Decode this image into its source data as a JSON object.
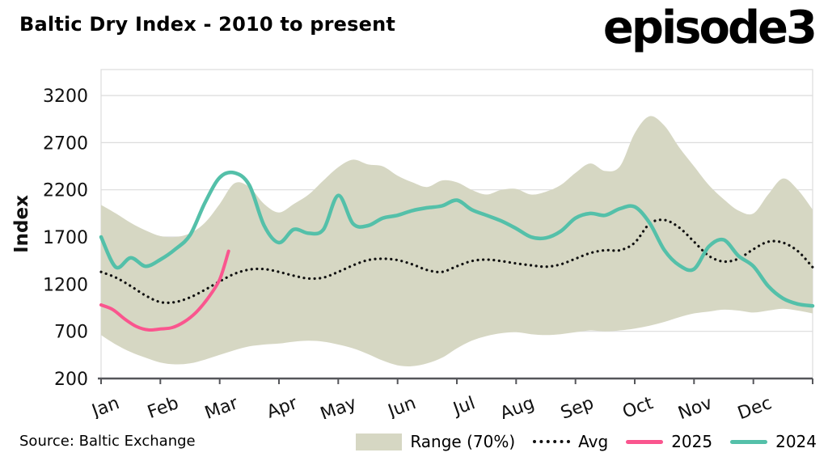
{
  "header": {
    "title": "Baltic Dry Index - 2010 to present",
    "logo": "episode3"
  },
  "footer": {
    "source": "Source: Baltic Exchange"
  },
  "legend": [
    {
      "label": "Range (70%)",
      "type": "band",
      "color": "#d6d7c3"
    },
    {
      "label": "Avg",
      "type": "dotted",
      "color": "#111111"
    },
    {
      "label": "2025",
      "type": "line",
      "color": "#fa558e"
    },
    {
      "label": "2024",
      "type": "line",
      "color": "#54c0a9"
    }
  ],
  "chart_data": {
    "type": "line",
    "title": "Baltic Dry Index - 2010 to present",
    "ylabel": "Index",
    "xlabel": "",
    "ylim": [
      200,
      3475
    ],
    "yticks": [
      200,
      700,
      1200,
      1700,
      2200,
      2700,
      3200
    ],
    "month_labels": [
      "Jan",
      "Feb",
      "Mar",
      "Apr",
      "May",
      "Jun",
      "Jul",
      "Aug",
      "Sep",
      "Oct",
      "Nov",
      "Dec"
    ],
    "x_range_months": [
      0,
      12
    ],
    "x_step_months": 0.25,
    "grid_on": true,
    "grid_color": "#dcdcdc",
    "axis_color": "#55565a",
    "text_color": "#111111",
    "legend_position": "bottom-right",
    "band": {
      "name": "Range (70%)",
      "color": "#d6d7c3",
      "upper": [
        2040,
        1950,
        1850,
        1770,
        1710,
        1700,
        1740,
        1850,
        2050,
        2270,
        2230,
        2050,
        1960,
        2050,
        2150,
        2300,
        2440,
        2520,
        2470,
        2450,
        2350,
        2280,
        2230,
        2300,
        2280,
        2200,
        2150,
        2200,
        2210,
        2150,
        2180,
        2250,
        2380,
        2480,
        2400,
        2450,
        2800,
        2980,
        2880,
        2650,
        2450,
        2250,
        2100,
        1980,
        1950,
        2150,
        2320,
        2200,
        1990
      ],
      "lower": [
        660,
        560,
        480,
        420,
        370,
        350,
        360,
        400,
        450,
        500,
        540,
        560,
        570,
        590,
        600,
        590,
        560,
        520,
        460,
        390,
        340,
        330,
        360,
        420,
        520,
        600,
        650,
        680,
        690,
        670,
        660,
        670,
        690,
        710,
        700,
        710,
        730,
        760,
        800,
        850,
        890,
        910,
        930,
        920,
        900,
        920,
        940,
        920,
        890
      ]
    },
    "series": [
      {
        "name": "Avg",
        "style": "dotted",
        "color": "#111111",
        "width": 3.2,
        "values": [
          1330,
          1270,
          1180,
          1080,
          1010,
          1010,
          1060,
          1140,
          1230,
          1310,
          1355,
          1360,
          1330,
          1290,
          1260,
          1270,
          1330,
          1400,
          1455,
          1470,
          1455,
          1410,
          1350,
          1330,
          1390,
          1445,
          1460,
          1445,
          1420,
          1400,
          1385,
          1410,
          1470,
          1530,
          1560,
          1560,
          1640,
          1840,
          1880,
          1800,
          1650,
          1500,
          1440,
          1470,
          1570,
          1650,
          1640,
          1550,
          1380
        ]
      },
      {
        "name": "2025",
        "style": "solid",
        "color": "#fa558e",
        "width": 4,
        "x": [
          0,
          0.2,
          0.4,
          0.6,
          0.8,
          1.0,
          1.2,
          1.4,
          1.6,
          1.8,
          2.0,
          2.15
        ],
        "values": [
          980,
          930,
          830,
          750,
          715,
          725,
          740,
          800,
          900,
          1050,
          1250,
          1550
        ]
      },
      {
        "name": "2024",
        "style": "solid",
        "color": "#54c0a9",
        "width": 4.5,
        "values": [
          1700,
          1380,
          1480,
          1390,
          1460,
          1570,
          1720,
          2060,
          2330,
          2380,
          2250,
          1820,
          1640,
          1780,
          1740,
          1780,
          2140,
          1840,
          1820,
          1900,
          1930,
          1980,
          2010,
          2030,
          2090,
          1990,
          1930,
          1870,
          1790,
          1700,
          1690,
          1760,
          1900,
          1950,
          1930,
          2000,
          2020,
          1850,
          1560,
          1400,
          1360,
          1600,
          1670,
          1500,
          1390,
          1180,
          1050,
          990,
          970
        ]
      }
    ]
  }
}
